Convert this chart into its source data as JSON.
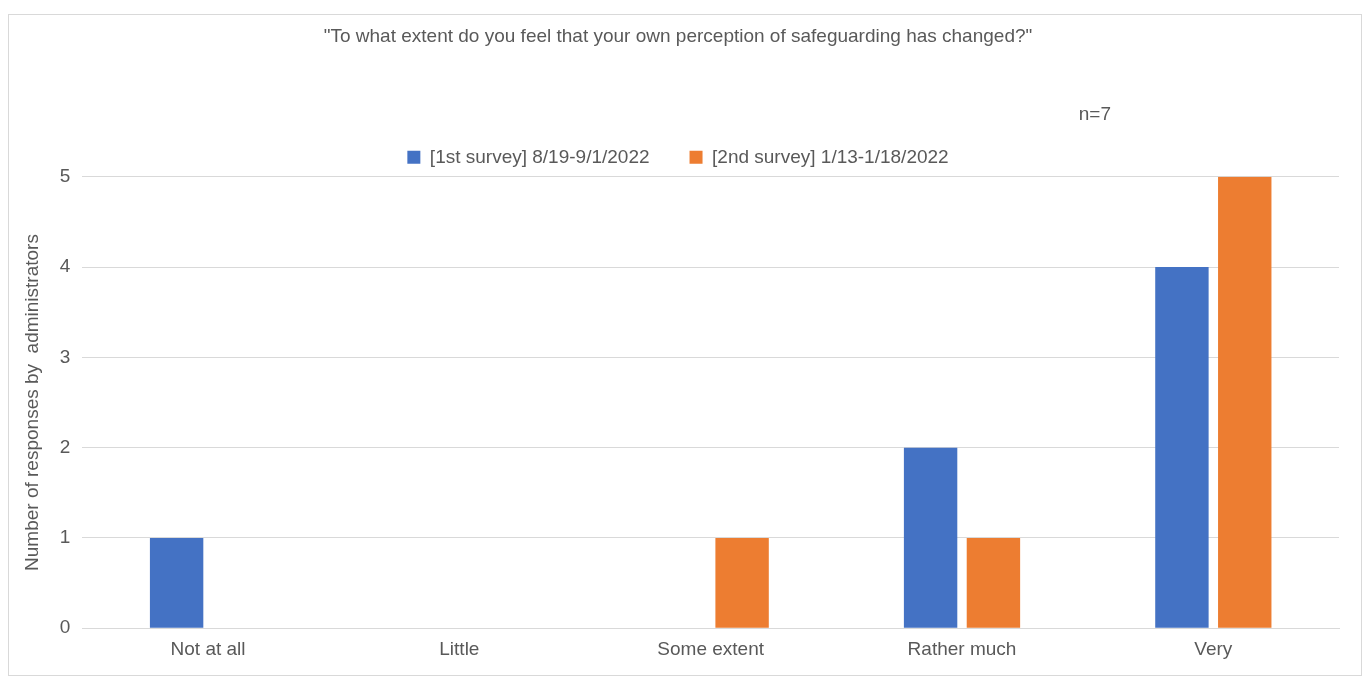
{
  "chart_data": {
    "type": "bar",
    "title": "\"To what extent do you feel that your own perception of safeguarding has changed?\"",
    "annotations": [
      "n=7"
    ],
    "ylabel": "Number of responses by  administrators",
    "categories": [
      "Not at all",
      "Little",
      "Some extent",
      "Rather much",
      "Very"
    ],
    "series": [
      {
        "name": "[1st survey] 8/19-9/1/2022",
        "color": "#4472c4",
        "values": [
          1,
          0,
          0,
          2,
          4
        ]
      },
      {
        "name": "[2nd survey] 1/13-1/18/2022",
        "color": "#ed7d31",
        "values": [
          0,
          0,
          1,
          1,
          5
        ]
      }
    ],
    "ylim": [
      0,
      5
    ],
    "yticks": [
      0,
      1,
      2,
      3,
      4,
      5
    ],
    "grid": "y",
    "legend": "top"
  }
}
